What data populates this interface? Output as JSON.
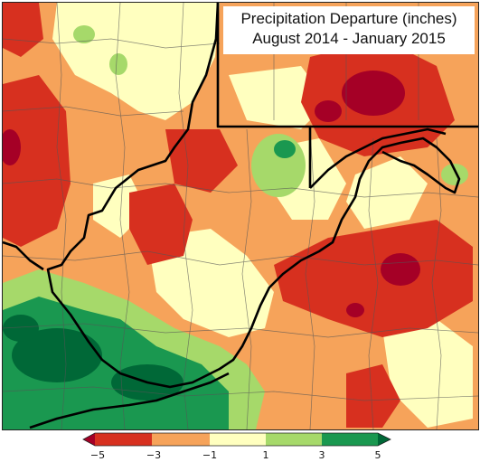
{
  "title": {
    "line1": "Precipitation Departure (inches)",
    "line2": "August 2014 - January 2015"
  },
  "legend": {
    "ticks": [
      "−5",
      "−3",
      "−1",
      "1",
      "3",
      "5"
    ],
    "bins": [
      {
        "range": "< -5",
        "color": "#a50026"
      },
      {
        "range": "-5 to -3",
        "color": "#d7301f"
      },
      {
        "range": "-3 to -1",
        "color": "#f6a35a"
      },
      {
        "range": "-1 to 1",
        "color": "#ffffbf"
      },
      {
        "range": "1 to 3",
        "color": "#a6d96a"
      },
      {
        "range": "3 to 5",
        "color": "#1a9850"
      },
      {
        "range": "> 5",
        "color": "#006837"
      }
    ]
  },
  "colors": {
    "very_dry": "#a50026",
    "dry": "#d7301f",
    "slightly_dry": "#f6a35a",
    "near_normal": "#ffffbf",
    "wet": "#a6d96a",
    "very_wet": "#1a9850",
    "extremely_wet": "#006837",
    "state_border": "#000000",
    "county_line": "#555555"
  }
}
